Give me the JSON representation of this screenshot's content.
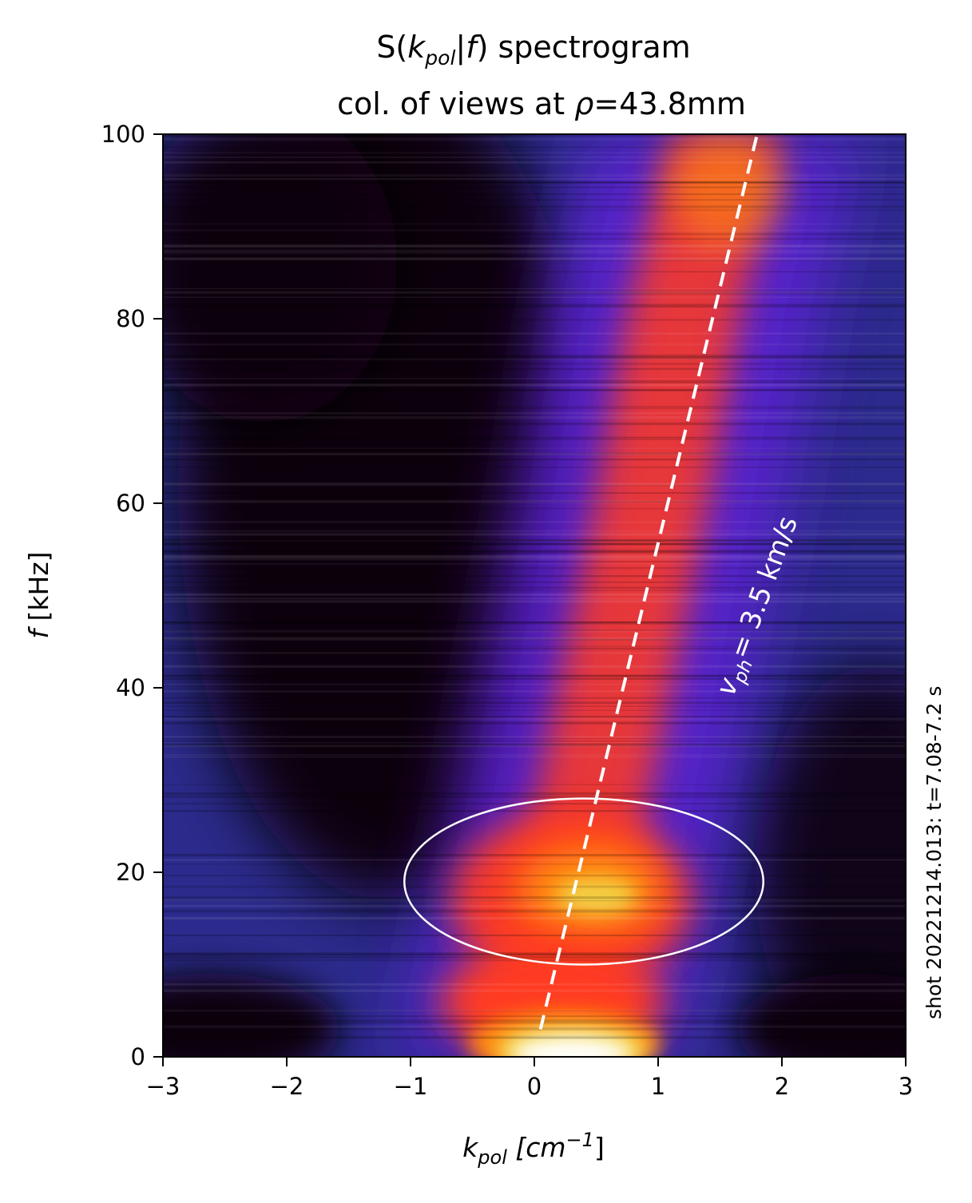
{
  "chart_data": {
    "type": "heatmap",
    "title": {
      "line1_prefix": "S(",
      "line1_k": "k",
      "line1_sub": "pol",
      "line1_mid": "|f",
      "line1_suffix": ") spectrogram",
      "line2_prefix": "col. of views at ",
      "line2_rho": "ρ",
      "line2_suffix": "=43.8mm"
    },
    "xlabel": {
      "k": "k",
      "sub": "pol",
      "unit": " [cm",
      "exp": "−1",
      "close": "]"
    },
    "ylabel": {
      "f": "f",
      "unit": " [kHz]"
    },
    "xlim": [
      -3,
      3
    ],
    "ylim": [
      0,
      100
    ],
    "x_ticks": [
      -3,
      -2,
      -1,
      0,
      1,
      2,
      3
    ],
    "x_tick_labels": [
      "−3",
      "−2",
      "−1",
      "0",
      "1",
      "2",
      "3"
    ],
    "y_ticks": [
      0,
      20,
      40,
      60,
      80,
      100
    ],
    "y_tick_labels": [
      "0",
      "20",
      "40",
      "60",
      "80",
      "100"
    ],
    "colormap": "CMRmap-like (black, blue, purple, red, orange, yellow, white)",
    "colors": {
      "black": "#07060d",
      "blue": "#2c2a8c",
      "purple": "#5b24d2",
      "red": "#ff3a20",
      "orange": "#ff8a10",
      "yellow": "#f2d84a",
      "white": "#ffffff"
    },
    "ridge": [
      {
        "f": 0,
        "k": 0.0
      },
      {
        "f": 10,
        "k": 0.2
      },
      {
        "f": 20,
        "k": 0.35
      },
      {
        "f": 40,
        "k": 0.65
      },
      {
        "f": 60,
        "k": 0.95
      },
      {
        "f": 80,
        "k": 1.2
      },
      {
        "f": 100,
        "k": 1.55
      }
    ],
    "hotspots": [
      {
        "k": 0.3,
        "f": 1,
        "level": "white"
      },
      {
        "k": 0.4,
        "f": 18,
        "level": "yellow"
      }
    ],
    "phase_velocity_line": {
      "style": "dashed white",
      "points": [
        [
          0.05,
          3
        ],
        [
          1.8,
          100
        ]
      ],
      "label_prefix": "v",
      "label_sub": "ph",
      "label_value": "= 3.5 km/s"
    },
    "ellipse": {
      "center_k": 0.4,
      "center_f": 19,
      "half_width_k": 1.45,
      "half_height_f": 9,
      "color": "white"
    },
    "side_note": "shot 20221214.013: t=7.08-7.2 s"
  }
}
